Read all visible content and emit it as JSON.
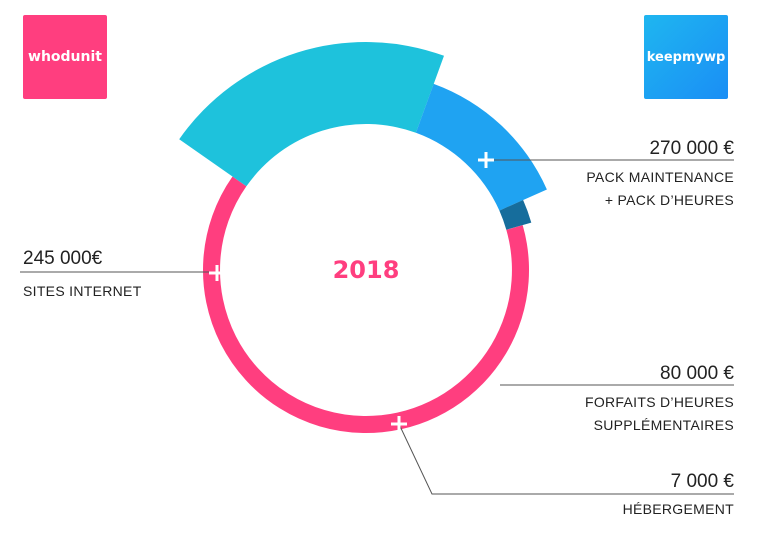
{
  "logos": {
    "left": {
      "text": "whodunit",
      "color": "#ff3e7f"
    },
    "right": {
      "text": "keepmywp",
      "color": "#1fa3f2"
    }
  },
  "chart_data": {
    "type": "pie",
    "title": "",
    "center_label": "2018",
    "series": [
      {
        "value_label": "270 000 €",
        "name_lines": [
          "PACK MAINTENANCE",
          "+ PACK D’HEURES"
        ],
        "value": 270000,
        "color": "#1ec2dc"
      },
      {
        "value_label": "80 000 €",
        "name_lines": [
          "FORFAITS D’HEURES",
          "SUPPLÉMENTAIRES"
        ],
        "value": 80000,
        "color": "#1fa3f2"
      },
      {
        "value_label": "7 000 €",
        "name_lines": [
          "HÉBERGEMENT"
        ],
        "value": 7000,
        "color": "#166d9c"
      },
      {
        "value_label": "245 000€",
        "name_lines": [
          "SITES INTERNET"
        ],
        "value": 245000,
        "color": "#ff3e7f"
      }
    ]
  }
}
